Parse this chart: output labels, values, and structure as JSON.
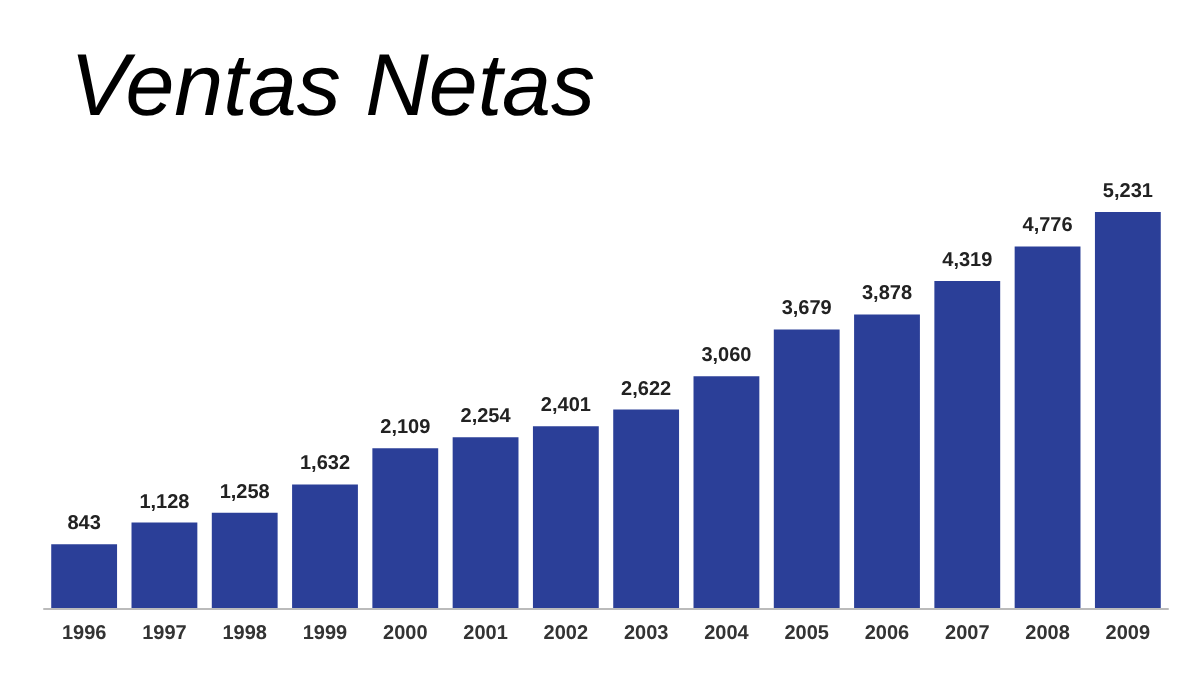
{
  "chart_data": {
    "type": "bar",
    "title": "Ventas Netas",
    "categories": [
      "1996",
      "1997",
      "1998",
      "1999",
      "2000",
      "2001",
      "2002",
      "2003",
      "2004",
      "2005",
      "2006",
      "2007",
      "2008",
      "2009"
    ],
    "values": [
      843,
      1128,
      1258,
      1632,
      2109,
      2254,
      2401,
      2622,
      3060,
      3679,
      3878,
      4319,
      4776,
      5231
    ],
    "value_labels": [
      "843",
      "1,128",
      "1,258",
      "1,632",
      "2,109",
      "2,254",
      "2,401",
      "2,622",
      "3,060",
      "3,679",
      "3,878",
      "4,319",
      "4,776",
      "5,231"
    ],
    "color": "#2b3f98"
  }
}
